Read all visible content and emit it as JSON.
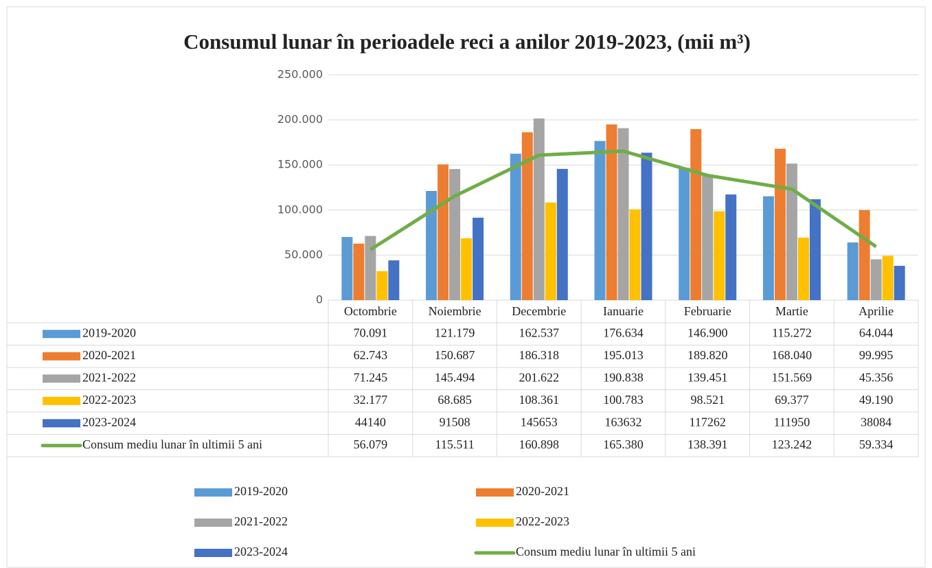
{
  "chart_data": {
    "type": "bar",
    "title": "Consumul lunar în perioadele reci a anilor 2019-2023, (mii m³)",
    "categories": [
      "Octombrie",
      "Noiembrie",
      "Decembrie",
      "Ianuarie",
      "Februarie",
      "Martie",
      "Aprilie"
    ],
    "ylim": [
      0,
      250000
    ],
    "yticks": [
      0,
      {
        "value": 50000,
        "label": "50.000"
      },
      {
        "value": 100000,
        "label": "100.000"
      },
      {
        "value": 150000,
        "label": "150.000"
      },
      {
        "value": 200000,
        "label": "200.000"
      },
      {
        "value": 250000,
        "label": "250.000"
      }
    ],
    "grid": true,
    "series": [
      {
        "name": "2019-2020",
        "color": "#5b9bd5",
        "values": [
          70091,
          121179,
          162537,
          176634,
          146900,
          115272,
          64044
        ],
        "value_labels": [
          "70.091",
          "121.179",
          "162.537",
          "176.634",
          "146.900",
          "115.272",
          "64.044"
        ]
      },
      {
        "name": "2020-2021",
        "color": "#ed7d31",
        "values": [
          62743,
          150687,
          186318,
          195013,
          189820,
          168040,
          99995
        ],
        "value_labels": [
          "62.743",
          "150.687",
          "186.318",
          "195.013",
          "189.820",
          "168.040",
          "99.995"
        ]
      },
      {
        "name": "2021-2022",
        "color": "#a5a5a5",
        "values": [
          71245,
          145494,
          201622,
          190838,
          139451,
          151569,
          45356
        ],
        "value_labels": [
          "71.245",
          "145.494",
          "201.622",
          "190.838",
          "139.451",
          "151.569",
          "45.356"
        ]
      },
      {
        "name": "2022-2023",
        "color": "#ffc000",
        "values": [
          32177,
          68685,
          108361,
          100783,
          98521,
          69377,
          49190
        ],
        "value_labels": [
          "32.177",
          "68.685",
          "108.361",
          "100.783",
          "98.521",
          "69.377",
          "49.190"
        ]
      },
      {
        "name": "2023-2024",
        "color": "#4472c4",
        "values": [
          44140,
          91508,
          145653,
          163632,
          117262,
          111950,
          38084
        ]
      },
      {
        "name": "Consum mediu lunar în ultimii 5 ani",
        "type": "line",
        "color": "#70ad47",
        "values": [
          56079,
          115511,
          160898,
          165380,
          138391,
          123242,
          59334
        ],
        "value_labels": [
          "56.079",
          "115.511",
          "160.898",
          "165.380",
          "138.391",
          "123.242",
          "59.334"
        ]
      }
    ]
  }
}
